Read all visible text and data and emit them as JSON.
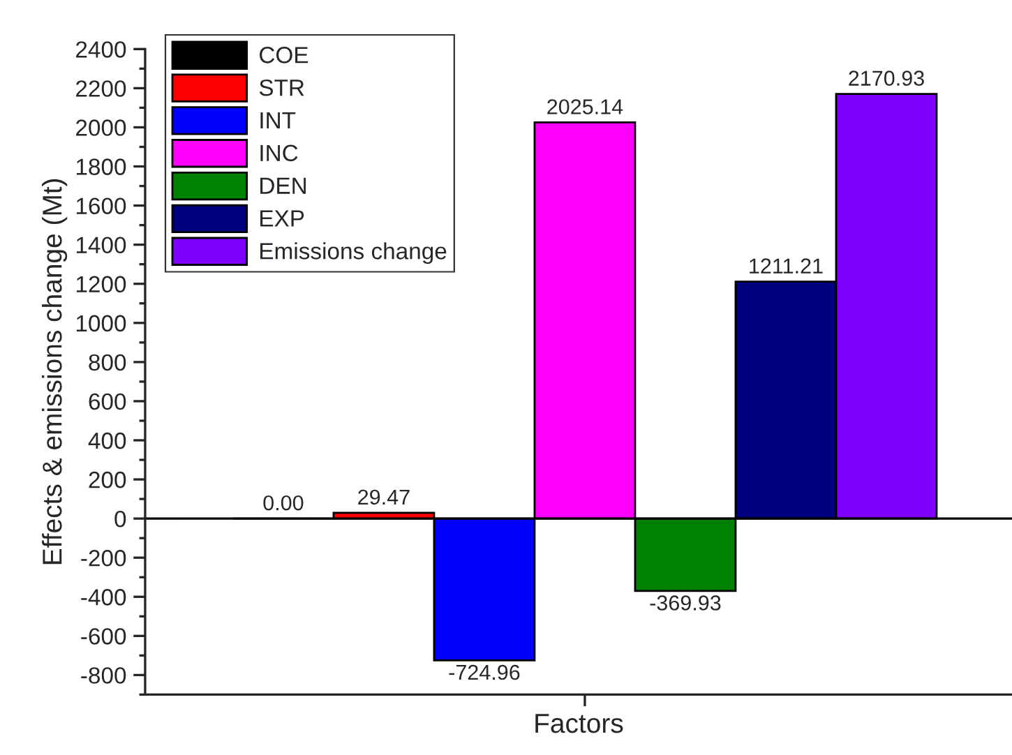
{
  "chart_data": {
    "type": "bar",
    "categories": [
      null
    ],
    "xlabel": "Factors",
    "ylabel": "Effects & emissions change (Mt)",
    "series": [
      {
        "name": "COE",
        "color": "#000000",
        "values": [
          0
        ],
        "value_labels": [
          "0.00"
        ]
      },
      {
        "name": "STR",
        "color": "#ff0000",
        "values": [
          29.47
        ],
        "value_labels": [
          "29.47"
        ]
      },
      {
        "name": "INT",
        "color": "#0000ff",
        "values": [
          -724.96
        ],
        "value_labels": [
          "-724.96"
        ]
      },
      {
        "name": "INC",
        "color": "#ff00ff",
        "values": [
          2025.14
        ],
        "value_labels": [
          "2025.14"
        ]
      },
      {
        "name": "DEN",
        "color": "#008000",
        "values": [
          -369.93
        ],
        "value_labels": [
          "-369.93"
        ]
      },
      {
        "name": "EXP",
        "color": "#000080",
        "values": [
          1211.21
        ],
        "value_labels": [
          "1211.21"
        ]
      },
      {
        "name": "Emissions change",
        "color": "#8000ff",
        "values": [
          2170.93
        ],
        "value_labels": [
          "2170.93"
        ]
      }
    ],
    "ylim": [
      -900,
      2400
    ],
    "yticks": [
      -800,
      -600,
      -400,
      -200,
      0,
      200,
      400,
      600,
      800,
      1000,
      1200,
      1400,
      1600,
      1800,
      2000,
      2200,
      2400
    ],
    "ref_lines": [
      {
        "axis": "y",
        "value": 0
      }
    ],
    "legend": "top left",
    "grid": false
  }
}
